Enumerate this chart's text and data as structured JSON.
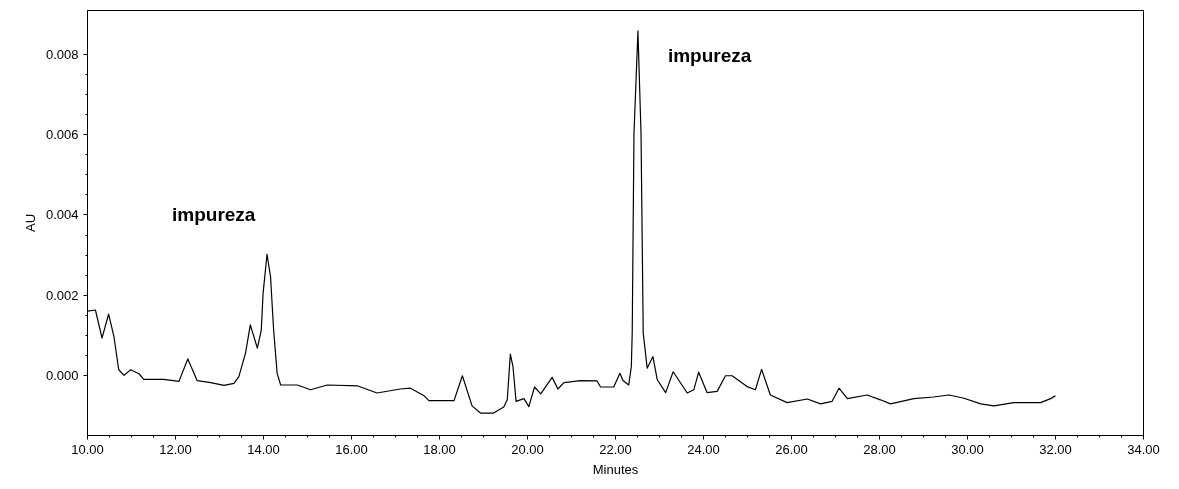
{
  "chart_data": {
    "type": "line",
    "xlabel": "Minutes",
    "ylabel": "AU",
    "xlim": [
      10,
      34
    ],
    "ylim": [
      -0.0015,
      0.0091
    ],
    "xticks": [
      {
        "value": 10,
        "label": "10.00"
      },
      {
        "value": 12,
        "label": "12.00"
      },
      {
        "value": 14,
        "label": "14.00"
      },
      {
        "value": 16,
        "label": "16.00"
      },
      {
        "value": 18,
        "label": "18.00"
      },
      {
        "value": 20,
        "label": "20.00"
      },
      {
        "value": 22,
        "label": "22.00"
      },
      {
        "value": 24,
        "label": "24.00"
      },
      {
        "value": 26,
        "label": "26.00"
      },
      {
        "value": 28,
        "label": "28.00"
      },
      {
        "value": 30,
        "label": "30.00"
      },
      {
        "value": 32,
        "label": "32.00"
      },
      {
        "value": 34,
        "label": "34.00"
      }
    ],
    "yticks": [
      {
        "value": 0,
        "label": "0.000"
      },
      0.002,
      0.004,
      0.006,
      0.008
    ],
    "grid": false,
    "marker": "none",
    "line_style": "solid",
    "annotations": [
      {
        "text": "impureza",
        "x": 14.08,
        "y": 0.00302
      },
      {
        "text": "impureza",
        "x": 22.51,
        "y": 0.00859
      }
    ],
    "series": [
      {
        "color": "#000000",
        "x": [
          10.0,
          10.18,
          10.33,
          10.48,
          10.6,
          10.71,
          10.83,
          10.98,
          11.17,
          11.28,
          11.73,
          12.08,
          12.15,
          12.28,
          12.42,
          12.49,
          12.8,
          13.1,
          13.33,
          13.44,
          13.59,
          13.7,
          13.86,
          13.95,
          13.99,
          14.08,
          14.16,
          14.23,
          14.31,
          14.39,
          14.77,
          15.07,
          15.45,
          16.13,
          16.58,
          17.11,
          17.34,
          17.64,
          17.76,
          18.02,
          18.33,
          18.52,
          18.74,
          18.93,
          19.23,
          19.46,
          19.54,
          19.61,
          19.67,
          19.74,
          19.92,
          20.03,
          20.16,
          20.3,
          20.56,
          20.69,
          20.83,
          21.2,
          21.58,
          21.66,
          21.96,
          22.1,
          22.17,
          22.3,
          22.36,
          22.38,
          22.42,
          22.51,
          22.58,
          22.63,
          22.72,
          22.85,
          22.95,
          23.14,
          23.31,
          23.63,
          23.78,
          23.89,
          24.08,
          24.31,
          24.5,
          24.65,
          24.99,
          25.18,
          25.32,
          25.52,
          25.9,
          26.36,
          26.66,
          26.92,
          27.08,
          27.27,
          27.72,
          28.02,
          28.25,
          28.78,
          29.23,
          29.58,
          29.92,
          30.3,
          30.6,
          31.05,
          31.66,
          31.89,
          32.0
        ],
        "values": [
          0.0016,
          0.00163,
          0.00093,
          0.00153,
          0.00097,
          0.00014,
          0.0,
          0.00014,
          4e-05,
          -0.0001,
          -0.0001,
          -0.00015,
          5e-05,
          0.00041,
          5e-05,
          -0.00013,
          -0.00018,
          -0.00025,
          -0.0002,
          -3e-05,
          0.00055,
          0.00126,
          0.00068,
          0.00113,
          0.00204,
          0.00302,
          0.00246,
          0.00113,
          5e-05,
          -0.00024,
          -0.00024,
          -0.00036,
          -0.00024,
          -0.00026,
          -0.00044,
          -0.00034,
          -0.00032,
          -0.0005,
          -0.00063,
          -0.00063,
          -0.00063,
          -1e-05,
          -0.00076,
          -0.00094,
          -0.00094,
          -0.00079,
          -0.00061,
          0.00053,
          0.00022,
          -0.00065,
          -0.00058,
          -0.00078,
          -0.00029,
          -0.00046,
          -5e-05,
          -0.00034,
          -0.00018,
          -0.00013,
          -0.00014,
          -0.00029,
          -0.00029,
          5e-05,
          -0.00013,
          -0.00024,
          0.00022,
          0.00106,
          0.00603,
          0.00859,
          0.00603,
          0.00106,
          0.00018,
          0.00047,
          -0.00011,
          -0.00043,
          9e-05,
          -0.00044,
          -0.00036,
          8e-05,
          -0.00043,
          -0.0004,
          -1e-05,
          -1e-05,
          -0.00028,
          -0.00036,
          0.00015,
          -0.00049,
          -0.00068,
          -0.00059,
          -0.00071,
          -0.00065,
          -0.00032,
          -0.00058,
          -0.00049,
          -0.00061,
          -0.00071,
          -0.00058,
          -0.00054,
          -0.00049,
          -0.00057,
          -0.00071,
          -0.00076,
          -0.00068,
          -0.00068,
          -0.00058,
          -0.00051
        ]
      }
    ]
  }
}
